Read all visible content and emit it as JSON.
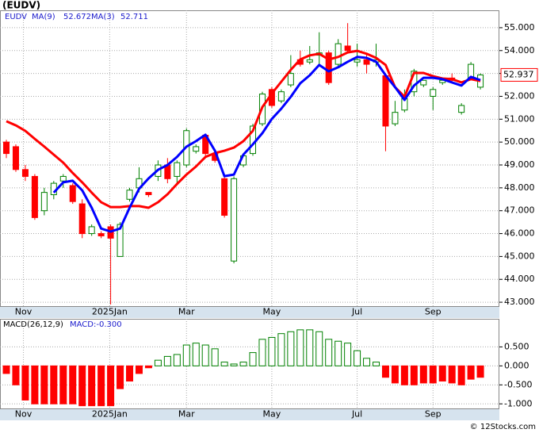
{
  "title": "(EUDV)",
  "copyright": "© 12Stocks.com",
  "chart_data": [
    {
      "type": "candlestick",
      "title": "EUDV",
      "open": [
        50.0,
        49.8,
        48.8,
        48.5,
        47.0,
        47.7,
        48.3,
        48.1,
        47.3,
        46.0,
        46.0,
        46.3,
        45.0,
        47.5,
        48.0,
        47.8,
        48.5,
        49.0,
        48.5,
        49.0,
        49.6,
        50.3,
        49.5,
        48.4,
        44.8,
        49.0,
        49.5,
        50.8,
        52.3,
        51.8,
        52.5,
        53.6,
        53.5,
        53.8,
        53.9,
        53.4,
        54.2,
        53.5,
        53.6,
        53.5,
        52.9,
        50.8,
        51.4,
        52.2,
        52.5,
        52.0,
        52.6,
        52.8,
        51.3,
        52.8,
        52.4
      ],
      "high": [
        50.1,
        49.9,
        49.0,
        48.6,
        48.0,
        48.3,
        48.6,
        48.2,
        47.5,
        46.4,
        46.1,
        46.4,
        46.5,
        48.0,
        48.9,
        47.8,
        49.2,
        49.3,
        49.2,
        50.6,
        49.9,
        50.3,
        49.6,
        48.5,
        48.5,
        49.5,
        50.8,
        52.2,
        52.4,
        52.3,
        53.8,
        54.0,
        54.2,
        54.8,
        54.0,
        54.5,
        55.2,
        54.3,
        53.9,
        54.3,
        53.0,
        51.8,
        52.3,
        53.2,
        52.7,
        52.4,
        52.7,
        53.0,
        51.7,
        53.5,
        53.0
      ],
      "low": [
        49.3,
        48.7,
        48.3,
        46.6,
        46.8,
        47.5,
        48.0,
        47.3,
        45.8,
        45.9,
        45.8,
        42.9,
        45.0,
        47.4,
        47.8,
        47.6,
        48.3,
        48.2,
        48.2,
        48.9,
        49.5,
        49.4,
        49.1,
        46.7,
        44.7,
        48.9,
        49.4,
        50.7,
        51.5,
        51.7,
        52.4,
        53.3,
        53.4,
        53.4,
        52.5,
        53.3,
        53.9,
        53.3,
        53.0,
        53.3,
        49.6,
        50.7,
        51.3,
        52.0,
        52.4,
        51.4,
        52.5,
        52.6,
        51.2,
        52.7,
        52.3
      ],
      "close": [
        49.5,
        48.8,
        48.5,
        46.7,
        47.8,
        48.2,
        48.5,
        47.4,
        46.0,
        46.3,
        45.9,
        45.8,
        46.4,
        47.9,
        48.4,
        47.7,
        49.0,
        48.4,
        49.1,
        50.5,
        49.8,
        49.5,
        49.2,
        46.8,
        48.4,
        49.4,
        50.7,
        52.1,
        51.6,
        52.2,
        53.0,
        53.4,
        53.6,
        53.9,
        52.6,
        54.3,
        54.0,
        53.6,
        53.4,
        53.6,
        50.7,
        51.3,
        51.9,
        53.1,
        52.7,
        52.3,
        52.7,
        52.7,
        51.6,
        53.4,
        52.937
      ],
      "up_color": "#008000",
      "down_color": "#ff0000",
      "series": [
        {
          "name": "MA(9)",
          "color": "#ff0000",
          "values": [
            50.91,
            50.73,
            50.49,
            50.14,
            49.8,
            49.45,
            49.1,
            48.65,
            48.24,
            47.79,
            47.37,
            47.16,
            47.16,
            47.2,
            47.2,
            47.13,
            47.37,
            47.72,
            48.17,
            48.58,
            48.93,
            49.35,
            49.52,
            49.62,
            49.76,
            50.04,
            50.49,
            51.53,
            52.12,
            52.64,
            53.16,
            53.61,
            53.79,
            53.86,
            53.61,
            53.72,
            53.92,
            53.99,
            53.86,
            53.68,
            53.37,
            52.4,
            51.98,
            53.02,
            53.02,
            52.88,
            52.78,
            52.75,
            52.61,
            52.75,
            52.672
          ]
        },
        {
          "name": "MA(3)",
          "color": "#0000ff",
          "values": [
            null,
            null,
            null,
            null,
            null,
            47.79,
            48.24,
            48.31,
            47.89,
            47.13,
            46.22,
            46.09,
            46.22,
            47.13,
            47.96,
            48.41,
            48.79,
            49.0,
            49.35,
            49.8,
            50.04,
            50.32,
            49.62,
            48.51,
            48.58,
            49.45,
            49.9,
            50.39,
            51.01,
            51.46,
            51.98,
            52.57,
            52.92,
            53.37,
            53.09,
            53.27,
            53.51,
            53.72,
            53.68,
            53.51,
            52.92,
            52.4,
            51.84,
            52.47,
            52.81,
            52.81,
            52.75,
            52.61,
            52.47,
            52.85,
            52.711
          ]
        }
      ],
      "ylim": [
        42.83,
        55.76
      ],
      "yticks": [
        {
          "value": 43,
          "label": "43.000"
        },
        {
          "value": 44,
          "label": "44.000"
        },
        {
          "value": 45,
          "label": "45.000"
        },
        {
          "value": 46,
          "label": "46.000"
        },
        {
          "value": 47,
          "label": "47.000"
        },
        {
          "value": 48,
          "label": "48.000"
        },
        {
          "value": 49,
          "label": "49.000"
        },
        {
          "value": 50,
          "label": "50.000"
        },
        {
          "value": 51,
          "label": "51.000"
        },
        {
          "value": 52,
          "label": "52.000"
        },
        {
          "value": 53,
          "label": "53.000"
        },
        {
          "value": 54,
          "label": "54.000"
        },
        {
          "value": 55,
          "label": "55.000"
        }
      ],
      "xlim": [
        -0.67,
        52.0
      ],
      "xticks": [
        {
          "value": 1.8,
          "label": "Nov"
        },
        {
          "value": 10.9,
          "label": "2025Jan"
        },
        {
          "value": 19,
          "label": "Mar"
        },
        {
          "value": 28,
          "label": "May"
        },
        {
          "value": 37,
          "label": "Jul"
        },
        {
          "value": 45,
          "label": "Sep"
        }
      ],
      "grid": true
    },
    {
      "type": "macd",
      "title": "MACD(26,12,9)",
      "subtitle": "MACD:-0.300",
      "values": [
        -0.2,
        -0.5,
        -0.9,
        -1.0,
        -1.0,
        -1.0,
        -1.0,
        -1.0,
        -1.05,
        -1.05,
        -1.05,
        -1.05,
        -0.6,
        -0.4,
        -0.2,
        -0.05,
        0.15,
        0.25,
        0.3,
        0.55,
        0.6,
        0.55,
        0.45,
        0.1,
        0.05,
        0.1,
        0.35,
        0.7,
        0.75,
        0.85,
        0.9,
        0.95,
        0.95,
        0.9,
        0.7,
        0.65,
        0.6,
        0.4,
        0.2,
        0.1,
        -0.3,
        -0.45,
        -0.5,
        -0.5,
        -0.45,
        -0.45,
        -0.4,
        -0.45,
        -0.5,
        -0.35,
        -0.3
      ],
      "up_color": "#008000",
      "down_color": "#ff0000",
      "ylim": [
        -1.12,
        1.24
      ],
      "yticks": [
        {
          "value": -1,
          "label": "-1.000"
        },
        {
          "value": -0.5,
          "label": "-0.500"
        },
        {
          "value": 0,
          "label": "0.000"
        },
        {
          "value": 0.5,
          "label": "0.500"
        }
      ],
      "xlim": [
        -0.67,
        52.0
      ],
      "xticks": [
        {
          "value": 1.8,
          "label": "Nov"
        },
        {
          "value": 10.9,
          "label": "2025Jan"
        },
        {
          "value": 19,
          "label": "Mar"
        },
        {
          "value": 28,
          "label": "May"
        },
        {
          "value": 37,
          "label": "Jul"
        },
        {
          "value": 45,
          "label": "Sep"
        }
      ],
      "grid": true
    }
  ]
}
